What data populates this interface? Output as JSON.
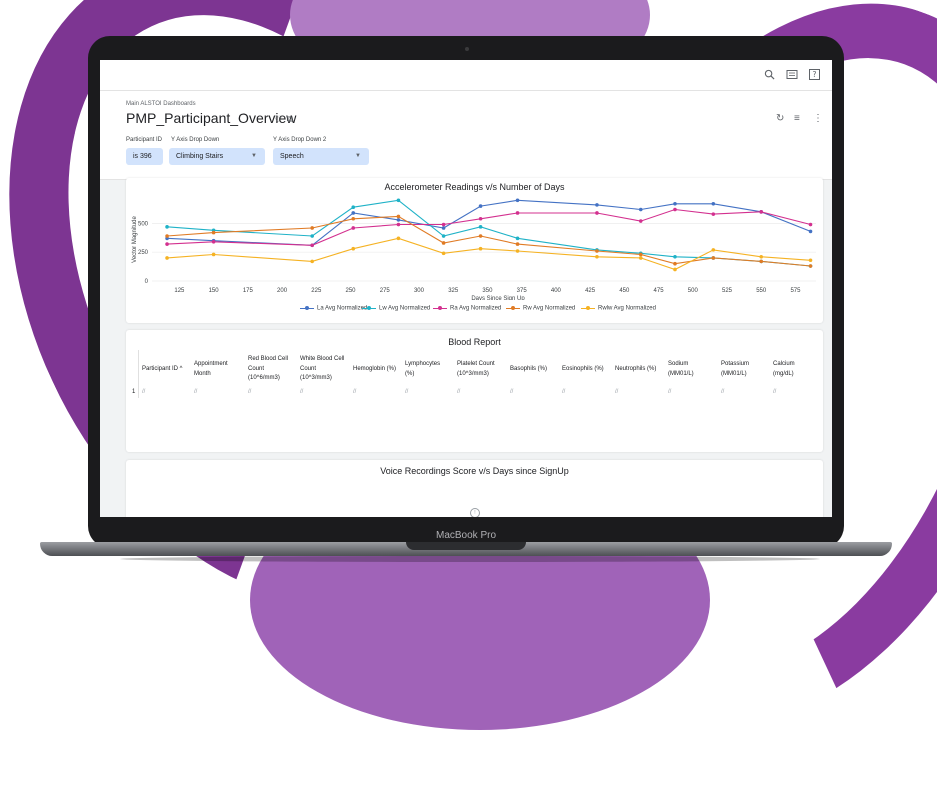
{
  "app": {
    "breadcrumb": "Main ALSTOI Dashboards",
    "title": "PMP_Participant_Overview",
    "device_label": "MacBook Pro"
  },
  "icons": {
    "topbar": [
      "search-icon",
      "keyboard-icon",
      "help-icon"
    ],
    "header": [
      "refresh-icon",
      "filter-icon",
      "more-vert-icon"
    ],
    "title": [
      "heart-icon",
      "copy-icon"
    ]
  },
  "filters": [
    {
      "label": "Participant ID",
      "value": "is 396"
    },
    {
      "label": "Y Axis Drop Down",
      "value": "Climbing Stairs"
    },
    {
      "label": "Y Axis Drop Down 2",
      "value": "Speech"
    }
  ],
  "colors": {
    "la": "#4472c4",
    "lw": "#1fb2c7",
    "ra": "#d3308f",
    "rw": "#e07b25",
    "rwlw": "#f5b223",
    "accent_bg": "#d2e3fc"
  },
  "accelerometer": {
    "title": "Accelerometer Readings v/s Number of Days"
  },
  "chart_data": {
    "type": "line",
    "title": "Accelerometer Readings v/s Number of Days",
    "xlabel": "Days Since Sign Up",
    "ylabel": "Vector Magnitude",
    "xlim": [
      105,
      590
    ],
    "ylim": [
      0,
      720
    ],
    "xticks": [
      125,
      150,
      175,
      200,
      225,
      250,
      275,
      300,
      325,
      350,
      375,
      400,
      425,
      450,
      475,
      500,
      525,
      550,
      575
    ],
    "yticks": [
      0,
      250,
      500
    ],
    "legend_position": "bottom",
    "series": [
      {
        "name": "La Avg Normalized",
        "x": [
          116,
          150,
          222,
          252,
          285,
          318,
          345,
          372,
          430,
          462,
          487,
          515,
          550,
          586
        ],
        "y": [
          370,
          350,
          310,
          590,
          530,
          460,
          650,
          700,
          660,
          620,
          670,
          670,
          600,
          430
        ]
      },
      {
        "name": "Lw Avg Normalized",
        "x": [
          116,
          150,
          222,
          252,
          285,
          318,
          345,
          372,
          430,
          462,
          487,
          515,
          550,
          586
        ],
        "y": [
          470,
          440,
          390,
          640,
          700,
          390,
          470,
          370,
          270,
          240,
          210,
          200,
          170,
          130
        ]
      },
      {
        "name": "Ra Avg Normalized",
        "x": [
          116,
          150,
          222,
          252,
          285,
          318,
          345,
          372,
          430,
          462,
          487,
          515,
          550,
          586
        ],
        "y": [
          320,
          340,
          310,
          460,
          490,
          490,
          540,
          590,
          590,
          520,
          620,
          580,
          600,
          490
        ]
      },
      {
        "name": "Rw Avg Normalized",
        "x": [
          116,
          150,
          222,
          252,
          285,
          318,
          345,
          372,
          430,
          462,
          487,
          515,
          550,
          586
        ],
        "y": [
          390,
          420,
          460,
          540,
          560,
          330,
          390,
          320,
          260,
          230,
          150,
          200,
          170,
          130
        ]
      },
      {
        "name": "Rwlw Avg Normalized",
        "x": [
          116,
          150,
          222,
          252,
          285,
          318,
          345,
          372,
          430,
          462,
          487,
          515,
          550,
          586
        ],
        "y": [
          200,
          230,
          170,
          280,
          370,
          240,
          280,
          260,
          210,
          200,
          100,
          270,
          210,
          180
        ]
      }
    ]
  },
  "blood_report": {
    "title": "Blood Report",
    "columns": [
      [
        "Participant ID ^"
      ],
      [
        "Appointment",
        "Month"
      ],
      [
        "Red Blood Cell",
        "Count",
        "(10^6/mm3)"
      ],
      [
        "White Blood Cell",
        "Count",
        "(10^3/mm3)"
      ],
      [
        "Hemoglobin (%)"
      ],
      [
        "Lymphocytes",
        "(%)"
      ],
      [
        "Platelet Count",
        "(10^3/mm3)"
      ],
      [
        "Basophils (%)"
      ],
      [
        "Eosinophils (%)"
      ],
      [
        "Neutrophils (%)"
      ],
      [
        "Sodium",
        "(MM01/L)"
      ],
      [
        "Potassium",
        "(MM01/L)"
      ],
      [
        "Calcium",
        "(mg/dL)"
      ]
    ],
    "rows": [
      {
        "index": "1",
        "cells": [
          "//",
          "//",
          "//",
          "//",
          "//",
          "//",
          "//",
          "//",
          "//",
          "//",
          "//",
          "//",
          "//"
        ]
      }
    ]
  },
  "voice": {
    "title": "Voice Recordings Score v/s Days since SignUp"
  }
}
